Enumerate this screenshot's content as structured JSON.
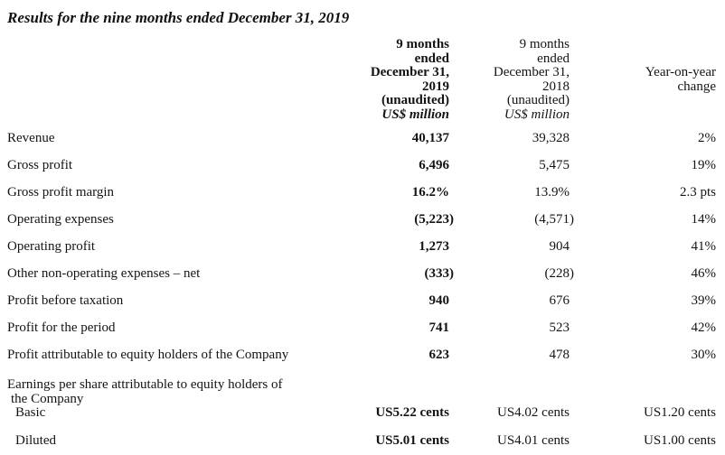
{
  "title": "Results for the nine months ended December 31, 2019",
  "table": {
    "columns": [
      {
        "id": "current",
        "lines": [
          "9 months",
          "ended",
          "December 31,",
          "2019",
          "(unaudited)",
          "US$ million"
        ],
        "unit_line": "US$ million",
        "bold": true
      },
      {
        "id": "prior",
        "lines": [
          "9 months",
          "ended",
          "December 31,",
          "2018",
          "(unaudited)",
          "US$ million"
        ],
        "unit_line": "US$ million",
        "bold": false
      },
      {
        "id": "yoy",
        "lines": [
          "Year-on-year",
          "change"
        ],
        "bold": false
      }
    ],
    "rows": [
      {
        "label": "Revenue",
        "current": "40,137",
        "prior": "39,328",
        "yoy": "2%"
      },
      {
        "label": "Gross profit",
        "current": "6,496",
        "prior": "5,475",
        "yoy": "19%"
      },
      {
        "label": "Gross profit margin",
        "current": "16.2%",
        "prior": "13.9%",
        "yoy": "2.3 pts"
      },
      {
        "label": "Operating expenses",
        "current": "(5,223)",
        "prior": "(4,571)",
        "yoy": "14%"
      },
      {
        "label": "Operating profit",
        "current": "1,273",
        "prior": "904",
        "yoy": "41%"
      },
      {
        "label": "Other non-operating expenses – net",
        "current": "(333)",
        "prior": "(228)",
        "yoy": "46%"
      },
      {
        "label": "Profit before taxation",
        "current": "940",
        "prior": "676",
        "yoy": "39%"
      },
      {
        "label": "Profit for the period",
        "current": "741",
        "prior": "523",
        "yoy": "42%"
      },
      {
        "label": "Profit attributable to equity holders of the Company",
        "current": "623",
        "prior": "478",
        "yoy": "30%"
      },
      {
        "label_lines": [
          "Earnings per share attributable to equity holders of",
          "the Company"
        ],
        "section": true
      },
      {
        "label": "Basic",
        "indent": true,
        "tight": true,
        "current": "US5.22 cents",
        "prior": "US4.02 cents",
        "yoy": "US1.20 cents"
      },
      {
        "label": "Diluted",
        "indent": true,
        "gap_above": true,
        "current": "US5.01 cents",
        "prior": "US4.01 cents",
        "yoy": "US1.00 cents"
      }
    ]
  }
}
